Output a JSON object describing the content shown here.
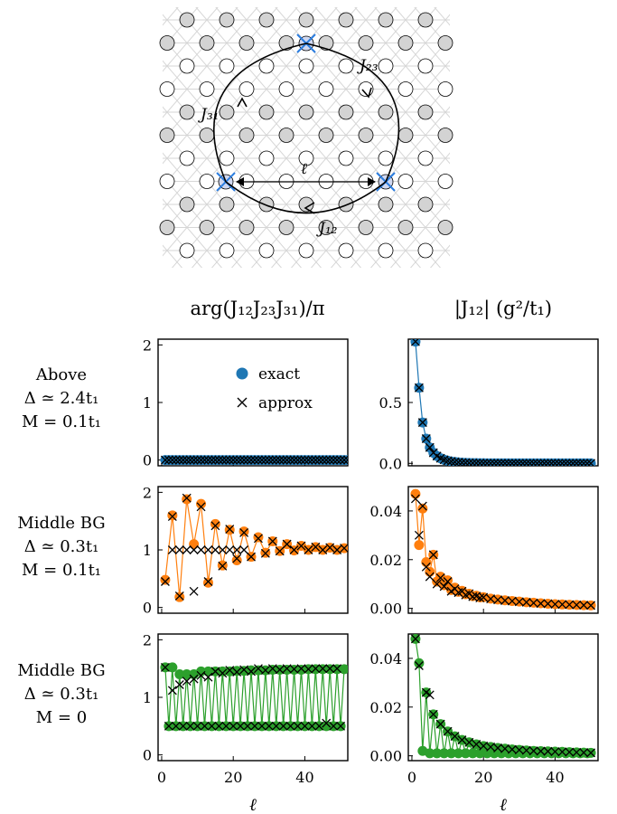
{
  "lattice": {
    "labels": {
      "J23": "J₂₃",
      "J31": "J₃₁",
      "J12": "J₁₂",
      "ell": "ℓ"
    }
  },
  "colors": {
    "blue": "#1f77b4",
    "orange": "#ff7f0e",
    "green": "#2ca02c",
    "cross_blue": "#2b7de0",
    "grey_site": "#d3d3d3"
  },
  "column_titles": [
    "arg(J₁₂J₂₃J₃₁)/π",
    "|J₁₂| (g²/t₁)"
  ],
  "row_labels": [
    [
      "Above",
      "Δ ≃ 2.4t₁",
      "M = 0.1t₁"
    ],
    [
      "Middle BG",
      "Δ ≃ 0.3t₁",
      "M = 0.1t₁"
    ],
    [
      "Middle BG",
      "Δ ≃ 0.3t₁",
      "M = 0"
    ]
  ],
  "legend": {
    "exact": "exact",
    "approx": "approx",
    "placement": "upper-right of top-left panel"
  },
  "x_axis": {
    "label": "ℓ",
    "ticks": [
      0,
      20,
      40
    ],
    "range": [
      -1,
      52
    ]
  },
  "chart_data": [
    {
      "type": "line",
      "panel": "row1-phase",
      "ylim": [
        -0.1,
        2.1
      ],
      "yticks": [
        "0",
        "1",
        "2"
      ],
      "series": [
        {
          "name": "exact",
          "kind": "line+marker",
          "x": [
            1,
            52
          ],
          "y": [
            0,
            0
          ],
          "dense": true,
          "color": "#1f77b4"
        },
        {
          "name": "approx",
          "kind": "marker-x",
          "x": [
            1,
            52
          ],
          "y": [
            0,
            0
          ],
          "dense": true
        }
      ]
    },
    {
      "type": "line",
      "panel": "row1-magnitude",
      "ylim": [
        -0.02,
        1.02
      ],
      "yticks": [
        "0.0",
        "0.5"
      ],
      "series": [
        {
          "name": "exact",
          "kind": "line+marker",
          "model": "decay",
          "A": 1.9,
          "p": 0.95,
          "color": "#1f77b4"
        },
        {
          "name": "approx",
          "kind": "marker-x",
          "model": "decay",
          "A": 1.9,
          "p": 0.95
        }
      ]
    },
    {
      "type": "line",
      "panel": "row2-phase",
      "ylim": [
        -0.1,
        2.1
      ],
      "yticks": [
        "0",
        "1",
        "2"
      ],
      "series": [
        {
          "name": "exact",
          "kind": "line+marker",
          "color": "#ff7f0e",
          "x": [
            1,
            3,
            5,
            7,
            9,
            11,
            13,
            15,
            17,
            19,
            21,
            23,
            25,
            27,
            29,
            31,
            33,
            35,
            37,
            39,
            41,
            43,
            45,
            47,
            49,
            51
          ],
          "y": [
            0.48,
            1.6,
            0.18,
            1.88,
            1.1,
            1.8,
            0.43,
            1.45,
            0.73,
            1.35,
            0.82,
            1.32,
            0.88,
            1.22,
            0.95,
            1.15,
            0.98,
            1.1,
            0.99,
            1.07,
            1.0,
            1.05,
            1.0,
            1.04,
            1.0,
            1.03
          ]
        },
        {
          "name": "approx",
          "kind": "marker-x",
          "x": [
            1,
            3,
            5,
            7,
            9,
            11,
            13,
            15,
            17,
            19,
            21,
            23,
            25,
            27,
            29,
            31,
            33,
            35,
            37,
            39,
            41,
            43,
            45,
            47,
            49,
            51
          ],
          "y": [
            0.45,
            1.58,
            0.2,
            1.9,
            0.28,
            1.75,
            0.45,
            1.42,
            0.72,
            1.36,
            0.85,
            1.3,
            0.88,
            1.2,
            0.94,
            1.15,
            0.98,
            1.1,
            1.0,
            1.07,
            1.0,
            1.05,
            1.0,
            1.04,
            1.0,
            1.03
          ]
        },
        {
          "name": "approx-flat",
          "kind": "marker-x",
          "x": [
            3,
            5,
            7,
            9,
            11,
            13,
            15,
            17,
            19,
            21,
            23
          ],
          "y": [
            1,
            1,
            1,
            1,
            1,
            1,
            1,
            1,
            1,
            1,
            1
          ]
        }
      ]
    },
    {
      "type": "line",
      "panel": "row2-magnitude",
      "ylim": [
        -0.002,
        0.05
      ],
      "yticks": [
        "0.00",
        "0.02",
        "0.04"
      ],
      "series": [
        {
          "name": "exact",
          "kind": "line+marker",
          "color": "#ff7f0e",
          "x": [
            1,
            2,
            3,
            4,
            5,
            6,
            7,
            8,
            9,
            10,
            11,
            12,
            13,
            14,
            15,
            16,
            17,
            18,
            19,
            20,
            22,
            24,
            26,
            28,
            30,
            32,
            34,
            36,
            38,
            40,
            42,
            44,
            46,
            48,
            50
          ],
          "y": [
            0.047,
            0.026,
            0.041,
            0.019,
            0.015,
            0.022,
            0.011,
            0.013,
            0.0095,
            0.0115,
            0.0075,
            0.0085,
            0.0068,
            0.0072,
            0.0058,
            0.006,
            0.005,
            0.0052,
            0.0045,
            0.0046,
            0.004,
            0.0036,
            0.0033,
            0.003,
            0.0028,
            0.0025,
            0.0023,
            0.0021,
            0.0019,
            0.0017,
            0.0016,
            0.0015,
            0.0014,
            0.0013,
            0.0012
          ]
        },
        {
          "name": "approx",
          "kind": "marker-x",
          "x": [
            1,
            2,
            3,
            4,
            5,
            6,
            7,
            8,
            9,
            10,
            11,
            12,
            13,
            14,
            15,
            16,
            17,
            18,
            19,
            20,
            22,
            24,
            26,
            28,
            30,
            32,
            34,
            36,
            38,
            40,
            42,
            44,
            46,
            48,
            50
          ],
          "y": [
            0.045,
            0.03,
            0.042,
            0.017,
            0.013,
            0.022,
            0.01,
            0.0125,
            0.009,
            0.011,
            0.007,
            0.008,
            0.0065,
            0.007,
            0.0055,
            0.006,
            0.0048,
            0.005,
            0.0043,
            0.0045,
            0.0039,
            0.0035,
            0.0032,
            0.003,
            0.0027,
            0.0025,
            0.0022,
            0.002,
            0.0019,
            0.0017,
            0.0016,
            0.0015,
            0.0014,
            0.0013,
            0.0012
          ]
        }
      ]
    },
    {
      "type": "line",
      "panel": "row3-phase",
      "ylim": [
        -0.1,
        2.1
      ],
      "yticks": [
        "0",
        "1",
        "2"
      ],
      "series": [
        {
          "name": "exact",
          "kind": "zigzag",
          "color": "#2ca02c",
          "hi": [
            1.52,
            1.4,
            1.45,
            1.45,
            1.46,
            1.47,
            1.48,
            1.48,
            1.49,
            1.49
          ],
          "lo": 0.5
        },
        {
          "name": "approx-hi",
          "kind": "marker-x",
          "x": [
            1,
            3,
            5,
            7,
            9,
            11,
            13,
            15,
            17,
            19,
            21,
            23,
            25,
            27,
            29,
            31,
            33,
            35,
            37,
            39,
            41,
            43,
            45,
            47,
            49
          ],
          "y": [
            1.52,
            1.12,
            1.22,
            1.28,
            1.32,
            1.38,
            1.35,
            1.45,
            1.42,
            1.47,
            1.44,
            1.48,
            1.45,
            1.5,
            1.47,
            1.5,
            1.48,
            1.5,
            1.49,
            1.5,
            1.49,
            1.5,
            1.5,
            1.5,
            1.5
          ]
        },
        {
          "name": "approx-lo",
          "kind": "marker-x",
          "x": [
            2,
            4,
            6,
            8,
            10,
            12,
            14,
            16,
            18,
            20,
            22,
            24,
            26,
            28,
            30,
            32,
            34,
            36,
            38,
            40,
            42,
            44,
            46,
            48,
            50
          ],
          "y": [
            0.5,
            0.5,
            0.5,
            0.5,
            0.5,
            0.5,
            0.5,
            0.5,
            0.5,
            0.5,
            0.5,
            0.5,
            0.5,
            0.5,
            0.5,
            0.5,
            0.5,
            0.5,
            0.5,
            0.5,
            0.5,
            0.5,
            0.55,
            0.5,
            0.5
          ]
        }
      ]
    },
    {
      "type": "line",
      "panel": "row3-magnitude",
      "ylim": [
        -0.002,
        0.05
      ],
      "yticks": [
        "0.00",
        "0.02",
        "0.04"
      ],
      "series": [
        {
          "name": "exact",
          "kind": "line+marker",
          "color": "#2ca02c",
          "x": [
            1,
            2,
            3,
            4,
            5,
            6,
            7,
            8,
            9,
            10,
            11,
            12,
            13,
            14,
            15,
            16,
            17,
            18,
            19,
            20,
            21,
            22,
            23,
            24,
            25,
            26,
            27,
            28,
            29,
            30,
            31,
            32,
            33,
            34,
            35,
            36,
            37,
            38,
            39,
            40,
            41,
            42,
            43,
            44,
            45,
            46,
            47,
            48,
            49,
            50
          ],
          "y": [
            0.048,
            0.038,
            0.002,
            0.026,
            0.001,
            0.017,
            0.001,
            0.013,
            0.001,
            0.01,
            0.001,
            0.008,
            0.001,
            0.0065,
            0.001,
            0.0055,
            0.001,
            0.0047,
            0.001,
            0.004,
            0.001,
            0.0036,
            0.001,
            0.0032,
            0.001,
            0.0029,
            0.001,
            0.0026,
            0.001,
            0.0024,
            0.001,
            0.0022,
            0.001,
            0.002,
            0.001,
            0.0019,
            0.001,
            0.0018,
            0.001,
            0.0017,
            0.001,
            0.0016,
            0.001,
            0.0015,
            0.001,
            0.0014,
            0.001,
            0.0013,
            0.001,
            0.0012
          ]
        },
        {
          "name": "approx",
          "kind": "marker-x",
          "x": [
            1,
            2,
            4,
            5,
            6,
            8,
            10,
            12,
            14,
            16,
            18,
            20,
            22,
            24,
            26,
            28,
            30,
            32,
            34,
            36,
            38,
            40,
            42,
            44,
            46,
            48,
            50
          ],
          "y": [
            0.048,
            0.037,
            0.026,
            0.025,
            0.017,
            0.013,
            0.01,
            0.008,
            0.0065,
            0.0055,
            0.0047,
            0.004,
            0.0036,
            0.0032,
            0.0029,
            0.0026,
            0.0024,
            0.0022,
            0.002,
            0.0019,
            0.0018,
            0.0017,
            0.0016,
            0.0015,
            0.0014,
            0.0013,
            0.0012
          ]
        }
      ]
    }
  ]
}
